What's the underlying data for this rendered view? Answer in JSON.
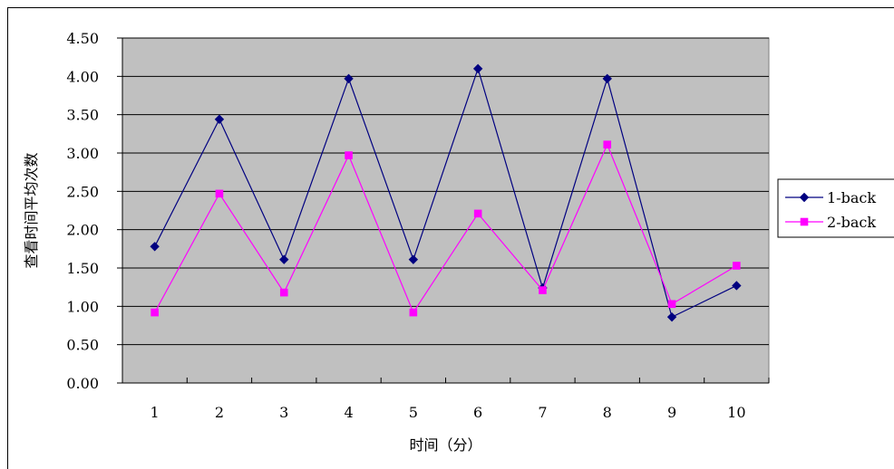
{
  "chart_data": {
    "type": "line",
    "categories": [
      "1",
      "2",
      "3",
      "4",
      "5",
      "6",
      "7",
      "8",
      "9",
      "10"
    ],
    "series": [
      {
        "name": "1-back",
        "color": "#000080",
        "marker": "diamond",
        "values": [
          1.78,
          3.44,
          1.61,
          3.97,
          1.61,
          4.1,
          1.24,
          3.97,
          0.86,
          1.27
        ]
      },
      {
        "name": "2-back",
        "color": "#FF00FF",
        "marker": "square",
        "values": [
          0.92,
          2.47,
          1.18,
          2.97,
          0.92,
          2.21,
          1.21,
          3.11,
          1.03,
          1.53
        ]
      }
    ],
    "xlabel": "时间（分）",
    "ylabel": "查看时间平均次数",
    "ylim": [
      0,
      4.5
    ],
    "yticks": [
      "0.00",
      "0.50",
      "1.00",
      "1.50",
      "2.00",
      "2.50",
      "3.00",
      "3.50",
      "4.00",
      "4.50"
    ],
    "ytick_values": [
      0,
      0.5,
      1,
      1.5,
      2,
      2.5,
      3,
      3.5,
      4,
      4.5
    ],
    "grid": true,
    "plot_background": "#C0C0C0",
    "legend_position": "right"
  }
}
